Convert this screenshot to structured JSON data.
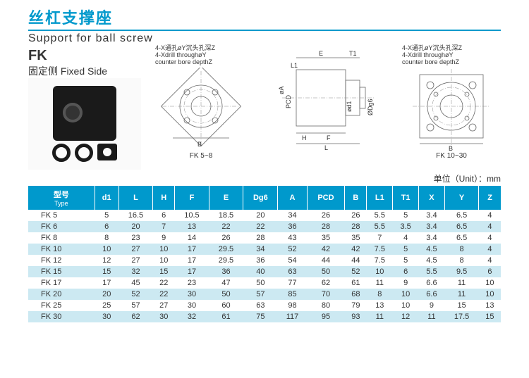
{
  "header": {
    "title_cn": "丝杠支撑座",
    "title_en": "Support for ball screw",
    "model": "FK",
    "fixed_side": "固定侧 Fixed Side",
    "hr_color": "#0099cc"
  },
  "annotations": {
    "left": "4-X通孔øY沉头孔深Z\n4-Xdrill throughøY\ncounter bore depthZ",
    "right": "4-X通孔øY沉头孔深Z\n4-Xdrill throughøY\ncounter bore depthZ"
  },
  "diagram_labels": {
    "view1_bottom": "FK 5~8",
    "view1_dim_B": "B",
    "view2_E": "E",
    "view2_T1": "T1",
    "view2_L1": "L1",
    "view2_H": "H",
    "view2_F": "F",
    "view2_L": "L",
    "view2_A": "øA",
    "view2_PCD": "PCD",
    "view2_d1": "ød1",
    "view2_Dg6": "ØDg6",
    "view3_bottom": "FK 10~30",
    "view3_dim_B": "B"
  },
  "unit_label": "单位（Unit）：mm",
  "table": {
    "header_bg": "#0099cc",
    "header_fg": "#ffffff",
    "row_even_bg": "#cce9f2",
    "row_odd_bg": "#ffffff",
    "columns": [
      {
        "key": "type",
        "label": "型号",
        "sub": "Type"
      },
      {
        "key": "d1",
        "label": "d1"
      },
      {
        "key": "L",
        "label": "L"
      },
      {
        "key": "H",
        "label": "H"
      },
      {
        "key": "F",
        "label": "F"
      },
      {
        "key": "E",
        "label": "E"
      },
      {
        "key": "Dg6",
        "label": "Dg6"
      },
      {
        "key": "A",
        "label": "A"
      },
      {
        "key": "PCD",
        "label": "PCD"
      },
      {
        "key": "B",
        "label": "B"
      },
      {
        "key": "L1",
        "label": "L1"
      },
      {
        "key": "T1",
        "label": "T1"
      },
      {
        "key": "X",
        "label": "X"
      },
      {
        "key": "Y",
        "label": "Y"
      },
      {
        "key": "Z",
        "label": "Z"
      }
    ],
    "rows": [
      [
        "FK  5",
        5,
        16.5,
        6,
        10.5,
        18.5,
        20,
        34,
        26,
        26,
        5.5,
        5,
        3.4,
        6.5,
        4
      ],
      [
        "FK  6",
        6,
        20,
        7,
        13,
        22,
        22,
        36,
        28,
        28,
        5.5,
        3.5,
        3.4,
        6.5,
        4
      ],
      [
        "FK  8",
        8,
        23,
        9,
        14,
        26,
        28,
        43,
        35,
        35,
        7,
        4,
        3.4,
        6.5,
        4
      ],
      [
        "FK  10",
        10,
        27,
        10,
        17,
        29.5,
        34,
        52,
        42,
        42,
        7.5,
        5,
        4.5,
        8,
        4
      ],
      [
        "FK  12",
        12,
        27,
        10,
        17,
        29.5,
        36,
        54,
        44,
        44,
        7.5,
        5,
        4.5,
        8,
        4
      ],
      [
        "FK  15",
        15,
        32,
        15,
        17,
        36,
        40,
        63,
        50,
        52,
        10,
        6,
        5.5,
        9.5,
        6
      ],
      [
        "FK  17",
        17,
        45,
        22,
        23,
        47,
        50,
        77,
        62,
        61,
        11,
        9,
        6.6,
        11,
        10
      ],
      [
        "FK  20",
        20,
        52,
        22,
        30,
        50,
        57,
        85,
        70,
        68,
        8,
        10,
        6.6,
        11,
        10
      ],
      [
        "FK  25",
        25,
        57,
        27,
        30,
        60,
        63,
        98,
        80,
        79,
        13,
        10,
        9,
        15,
        13
      ],
      [
        "FK  30",
        30,
        62,
        30,
        32,
        61,
        75,
        117,
        95,
        93,
        11,
        12,
        11,
        17.5,
        15
      ]
    ]
  }
}
